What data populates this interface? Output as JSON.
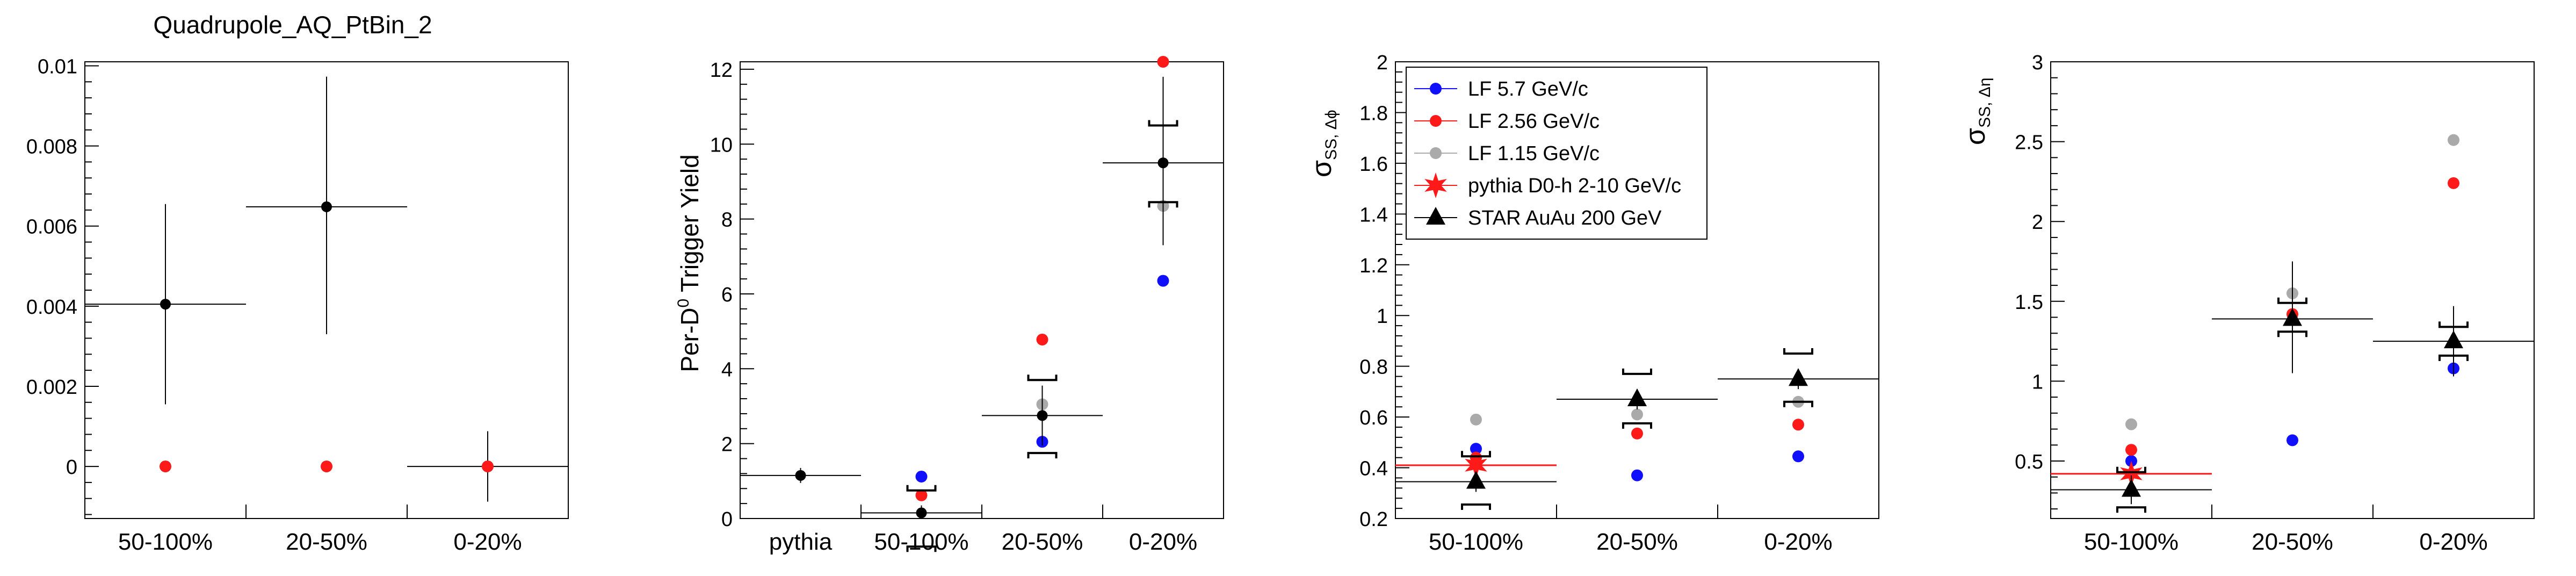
{
  "colors": {
    "lf57": "#1010ff",
    "lf256": "#ff1a1a",
    "lf115": "#aaaaaa",
    "pythia": "#ff1a1a",
    "star": "#000000",
    "data": "#000000"
  },
  "chart_data": [
    {
      "type": "scatter",
      "title": "Quadrupole_AQ_PtBin_2",
      "ylabel": "",
      "ylim": [
        -0.0013,
        0.0101
      ],
      "yticks": [
        0,
        0.002,
        0.004,
        0.006,
        0.008,
        0.01
      ],
      "ytick_labels": [
        "0",
        "0.002",
        "0.004",
        "0.006",
        "0.008",
        "0.01"
      ],
      "categories": [
        "50-100%",
        "20-50%",
        "0-20%"
      ],
      "series": [
        {
          "style": "data",
          "points": [
            {
              "x": 0,
              "y": 0.00405,
              "ylo": 0.00155,
              "yhi": 0.00655
            },
            {
              "x": 1,
              "y": 0.00648,
              "ylo": 0.0033,
              "yhi": 0.00973
            },
            {
              "x": 2,
              "y": 0.0,
              "ylo": -0.00088,
              "yhi": 0.00088
            }
          ]
        },
        {
          "style": "red-dot",
          "points": [
            {
              "x": 0,
              "y": 0.0
            },
            {
              "x": 1,
              "y": 0.0
            },
            {
              "x": 2,
              "y": 0.0
            }
          ]
        }
      ]
    },
    {
      "type": "scatter",
      "title": "",
      "ylabel": "Per-D",
      "ylabel_sup": "0",
      "ylabel_rest": " Trigger Yield",
      "ylim": [
        0,
        12.2
      ],
      "yticks": [
        0,
        2,
        4,
        6,
        8,
        10,
        12
      ],
      "ytick_labels": [
        "0",
        "2",
        "4",
        "6",
        "8",
        "10",
        "12"
      ],
      "categories": [
        "pythia",
        "50-100%",
        "20-50%",
        "0-20%"
      ],
      "series": [
        {
          "name": "LF 5.7 GeV/c",
          "style": "lf57",
          "points": [
            {
              "x": 1,
              "y": 1.12
            },
            {
              "x": 2,
              "y": 2.05
            },
            {
              "x": 3,
              "y": 6.35
            }
          ]
        },
        {
          "name": "LF 2.56 GeV/c",
          "style": "lf256",
          "points": [
            {
              "x": 1,
              "y": 0.62
            },
            {
              "x": 2,
              "y": 4.78
            },
            {
              "x": 3,
              "y": 12.2
            }
          ]
        },
        {
          "name": "LF 1.15 GeV/c",
          "style": "lf115",
          "points": [
            {
              "x": 2,
              "y": 3.05
            },
            {
              "x": 3,
              "y": 8.35
            }
          ]
        },
        {
          "style": "data",
          "points": [
            {
              "x": 0,
              "y": 1.15,
              "ylo": 0.95,
              "yhi": 1.35
            },
            {
              "x": 1,
              "y": 0.15,
              "ylo": 0.0,
              "yhi": 0.35,
              "syslo": -0.75,
              "syshi": 0.75
            },
            {
              "x": 2,
              "y": 2.75,
              "ylo": 1.95,
              "yhi": 3.55,
              "syslo": 1.75,
              "syshi": 3.7
            },
            {
              "x": 3,
              "y": 9.5,
              "ylo": 7.3,
              "yhi": 11.8,
              "syslo": 8.45,
              "syshi": 10.5
            }
          ]
        }
      ]
    },
    {
      "type": "scatter",
      "title": "",
      "ylabel": "σ",
      "ylabel_sub": "SS, Δϕ",
      "ylim": [
        0.2,
        2.0
      ],
      "yticks": [
        0.2,
        0.4,
        0.6,
        0.8,
        1.0,
        1.2,
        1.4,
        1.6,
        1.8,
        2.0
      ],
      "ytick_labels": [
        "0.2",
        "0.4",
        "0.6",
        "0.8",
        "1",
        "1.2",
        "1.4",
        "1.6",
        "1.8",
        "2"
      ],
      "categories": [
        "50-100%",
        "20-50%",
        "0-20%"
      ],
      "legend": {
        "placement": "top-left",
        "entries": [
          {
            "label": "LF 5.7 GeV/c",
            "style": "lf57"
          },
          {
            "label": "LF 2.56 GeV/c",
            "style": "lf256"
          },
          {
            "label": "LF 1.15 GeV/c",
            "style": "lf115"
          },
          {
            "label": "pythia D0-h 2-10 GeV/c",
            "style": "pythia"
          },
          {
            "label": "STAR AuAu 200 GeV",
            "style": "star"
          }
        ]
      },
      "series": [
        {
          "name": "LF 5.7 GeV/c",
          "style": "lf57",
          "points": [
            {
              "x": 0,
              "y": 0.475
            },
            {
              "x": 1,
              "y": 0.37
            },
            {
              "x": 2,
              "y": 0.445
            }
          ]
        },
        {
          "name": "LF 2.56 GeV/c",
          "style": "lf256",
          "points": [
            {
              "x": 0,
              "y": 0.44
            },
            {
              "x": 1,
              "y": 0.535
            },
            {
              "x": 2,
              "y": 0.57
            }
          ]
        },
        {
          "name": "LF 1.15 GeV/c",
          "style": "lf115",
          "points": [
            {
              "x": 0,
              "y": 0.59
            },
            {
              "x": 1,
              "y": 0.61
            },
            {
              "x": 2,
              "y": 0.66
            }
          ]
        },
        {
          "name": "pythia D0-h 2-10 GeV/c",
          "style": "pythia",
          "points": [
            {
              "x": 0,
              "y": 0.41
            }
          ]
        },
        {
          "name": "STAR AuAu 200 GeV",
          "style": "star",
          "points": [
            {
              "x": 0,
              "y": 0.345,
              "ylo": 0.305,
              "yhi": 0.385,
              "syslo": 0.255,
              "syshi": 0.445
            },
            {
              "x": 1,
              "y": 0.67,
              "ylo": 0.63,
              "yhi": 0.71,
              "syslo": 0.575,
              "syshi": 0.77
            },
            {
              "x": 2,
              "y": 0.75,
              "ylo": 0.71,
              "yhi": 0.79,
              "syslo": 0.66,
              "syshi": 0.85
            }
          ]
        }
      ]
    },
    {
      "type": "scatter",
      "title": "",
      "ylabel": "σ",
      "ylabel_sub": "SS, Δη",
      "ylim": [
        0.14,
        3.0
      ],
      "yticks": [
        0.5,
        1.0,
        1.5,
        2.0,
        2.5,
        3.0
      ],
      "ytick_labels": [
        "0.5",
        "1",
        "1.5",
        "2",
        "2.5",
        "3"
      ],
      "categories": [
        "50-100%",
        "20-50%",
        "0-20%"
      ],
      "series": [
        {
          "name": "LF 5.7 GeV/c",
          "style": "lf57",
          "points": [
            {
              "x": 0,
              "y": 0.5
            },
            {
              "x": 1,
              "y": 0.63
            },
            {
              "x": 2,
              "y": 1.08
            }
          ]
        },
        {
          "name": "LF 2.56 GeV/c",
          "style": "lf256",
          "points": [
            {
              "x": 0,
              "y": 0.57
            },
            {
              "x": 1,
              "y": 1.42
            },
            {
              "x": 2,
              "y": 2.24
            }
          ]
        },
        {
          "name": "LF 1.15 GeV/c",
          "style": "lf115",
          "points": [
            {
              "x": 0,
              "y": 0.73
            },
            {
              "x": 1,
              "y": 1.55
            },
            {
              "x": 2,
              "y": 2.51
            }
          ]
        },
        {
          "name": "pythia D0-h 2-10 GeV/c",
          "style": "pythia",
          "points": [
            {
              "x": 0,
              "y": 0.42
            }
          ]
        },
        {
          "name": "STAR AuAu 200 GeV",
          "style": "star",
          "points": [
            {
              "x": 0,
              "y": 0.32,
              "ylo": 0.23,
              "yhi": 0.41,
              "syslo": 0.21,
              "syshi": 0.43
            },
            {
              "x": 1,
              "y": 1.39,
              "ylo": 1.05,
              "yhi": 1.75,
              "syslo": 1.31,
              "syshi": 1.49
            },
            {
              "x": 2,
              "y": 1.25,
              "ylo": 1.03,
              "yhi": 1.47,
              "syslo": 1.16,
              "syshi": 1.34
            }
          ]
        }
      ]
    }
  ]
}
